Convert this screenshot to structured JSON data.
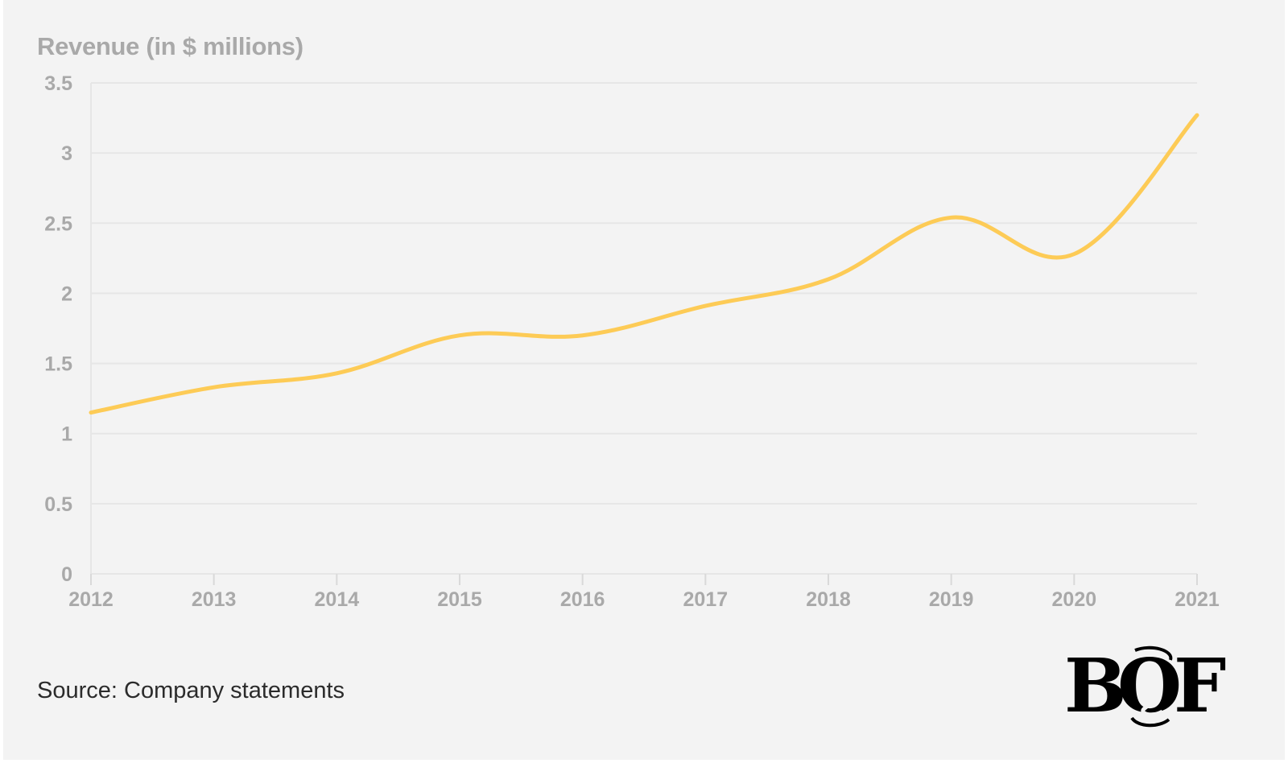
{
  "chart_data": {
    "type": "line",
    "title": "",
    "ylabel": "Revenue (in $ millions)",
    "xlabel": "",
    "x": [
      "2012",
      "2013",
      "2014",
      "2015",
      "2016",
      "2017",
      "2018",
      "2019",
      "2020",
      "2021"
    ],
    "series": [
      {
        "values": [
          1.15,
          1.33,
          1.43,
          1.7,
          1.7,
          1.91,
          2.1,
          2.54,
          2.28,
          3.27
        ]
      }
    ],
    "ylim": [
      0,
      3.5
    ],
    "yticks": [
      "0",
      "0.5",
      "1",
      "1.5",
      "2",
      "2.5",
      "3",
      "3.5"
    ],
    "grid": true,
    "line_color": "#fdcb56",
    "grid_color": "#e6e6e6",
    "tick_color": "#a9a9a9"
  },
  "source": "Source: Company statements",
  "logo": {
    "text": "BOF",
    "icon": "bof-logo-icon"
  },
  "colors": {
    "background": "#f3f3f3",
    "text_dark": "#2b2b2b"
  }
}
